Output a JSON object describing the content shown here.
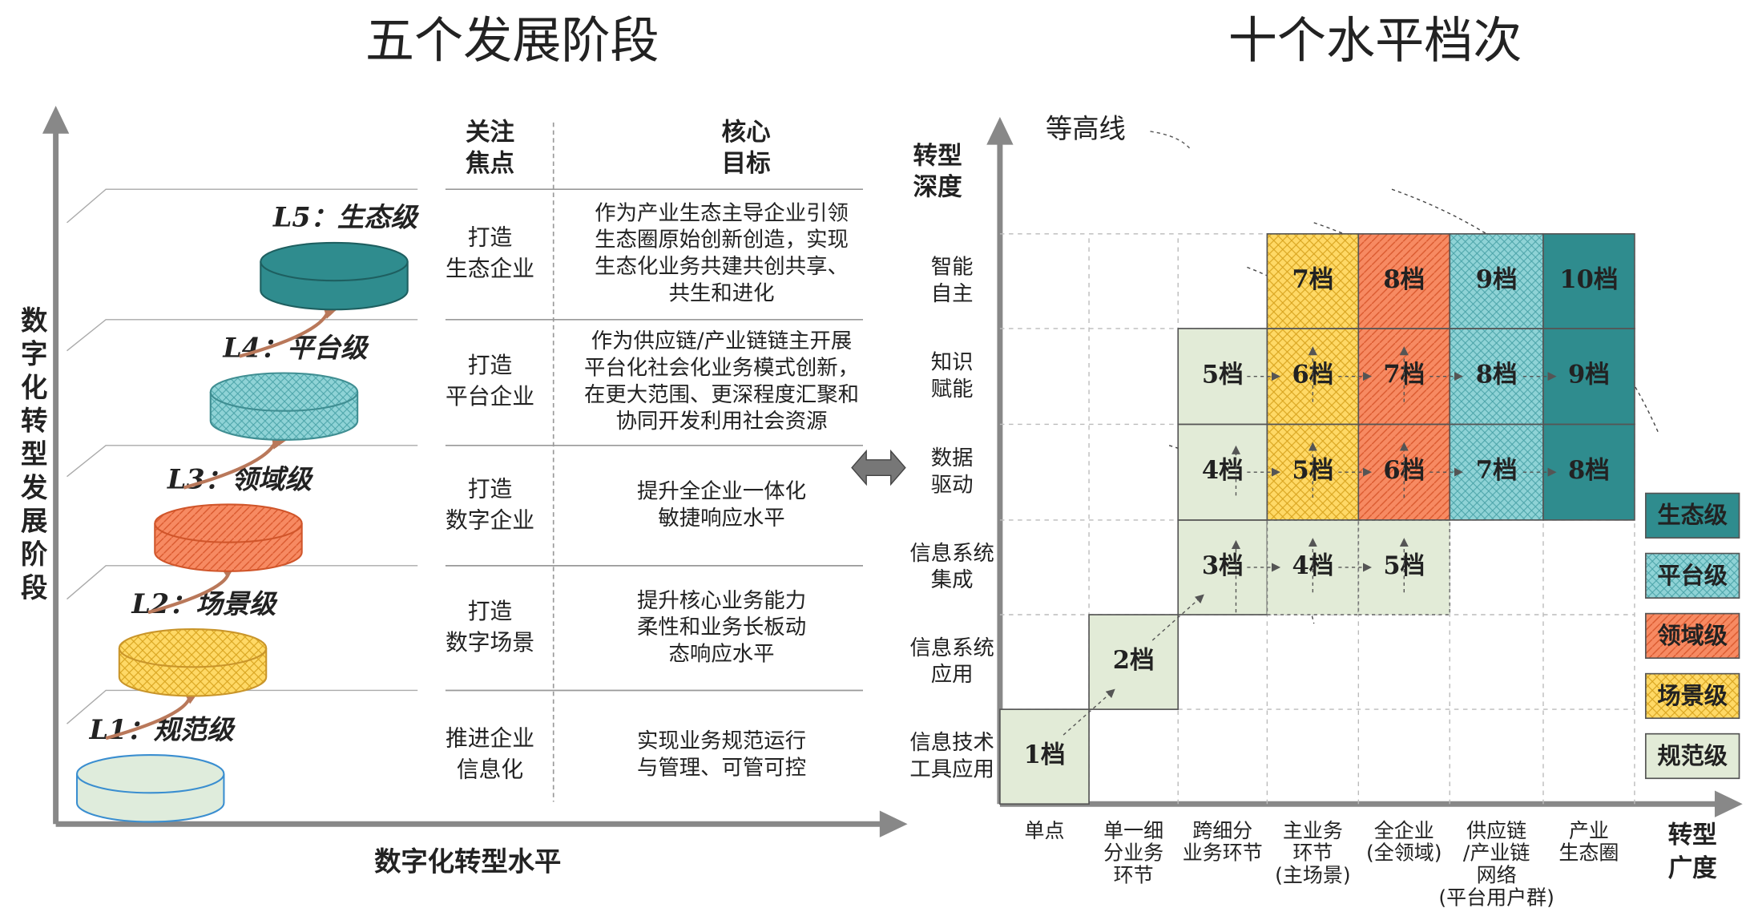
{
  "left": {
    "title": "五个发展阶段",
    "y_axis_label": "数字化转型发展阶段",
    "x_axis_label": "数字化转型水平",
    "levels": [
      "L1：规范级",
      "L2：场景级",
      "L3：领域级",
      "L4：平台级",
      "L5：生态级"
    ],
    "header": {
      "focus": [
        "关注",
        "焦点"
      ],
      "goal": [
        "核心",
        "目标"
      ]
    },
    "rows": [
      {
        "focus": [
          "打造",
          "生态企业"
        ],
        "goal": [
          "作为产业生态主导企业引领",
          "生态圈原始创新创造，实现",
          "生态化业务共建共创共享、",
          "共生和进化"
        ]
      },
      {
        "focus": [
          "打造",
          "平台企业"
        ],
        "goal": [
          "作为供应链/产业链链主开展",
          "平台化社会化业务模式创新，",
          "在更大范围、更深程度汇聚和",
          "协同开发利用社会资源"
        ]
      },
      {
        "focus": [
          "打造",
          "数字企业"
        ],
        "goal": [
          "提升全企业一体化",
          "敏捷响应水平"
        ]
      },
      {
        "focus": [
          "打造",
          "数字场景"
        ],
        "goal": [
          "提升核心业务能力",
          "柔性和业务长板动",
          "态响应水平"
        ]
      },
      {
        "focus": [
          "推进企业",
          "信息化"
        ],
        "goal": [
          "实现业务规范运行",
          "与管理、可管可控"
        ]
      }
    ]
  },
  "right": {
    "title": "十个水平档次",
    "contour_label": "等高线",
    "y_axis_title": [
      "转型",
      "深度"
    ],
    "y_levels": [
      [
        "信息技术",
        "工具应用"
      ],
      [
        "信息系统",
        "应用"
      ],
      [
        "信息系统",
        "集成"
      ],
      [
        "数据",
        "驱动"
      ],
      [
        "知识",
        "赋能"
      ],
      [
        "智能",
        "自主"
      ]
    ],
    "x_levels": [
      [
        "单点"
      ],
      [
        "单一细",
        "分业务",
        "环节"
      ],
      [
        "跨细分",
        "业务环节"
      ],
      [
        "主业务",
        "环节",
        "(主场景)"
      ],
      [
        "全企业",
        "(全领域)"
      ],
      [
        "供应链",
        "/产业链",
        "网络",
        "(平台用户群)"
      ],
      [
        "产业",
        "生态圈"
      ]
    ],
    "x_axis_title": [
      "转型",
      "广度"
    ],
    "grid": [
      [
        "1档",
        null,
        null,
        null,
        null,
        null,
        null
      ],
      [
        null,
        "2档",
        null,
        null,
        null,
        null,
        null
      ],
      [
        null,
        null,
        "3档",
        "4档",
        "5档",
        null,
        null
      ],
      [
        null,
        null,
        "4档",
        "5档",
        "6档",
        "7档",
        "8档"
      ],
      [
        null,
        null,
        "5档",
        "6档",
        "7档",
        "8档",
        "9档"
      ],
      [
        null,
        null,
        null,
        "7档",
        "8档",
        "9档",
        "10档"
      ]
    ],
    "legend": [
      "生态级",
      "平台级",
      "领域级",
      "场景级",
      "规范级"
    ]
  }
}
